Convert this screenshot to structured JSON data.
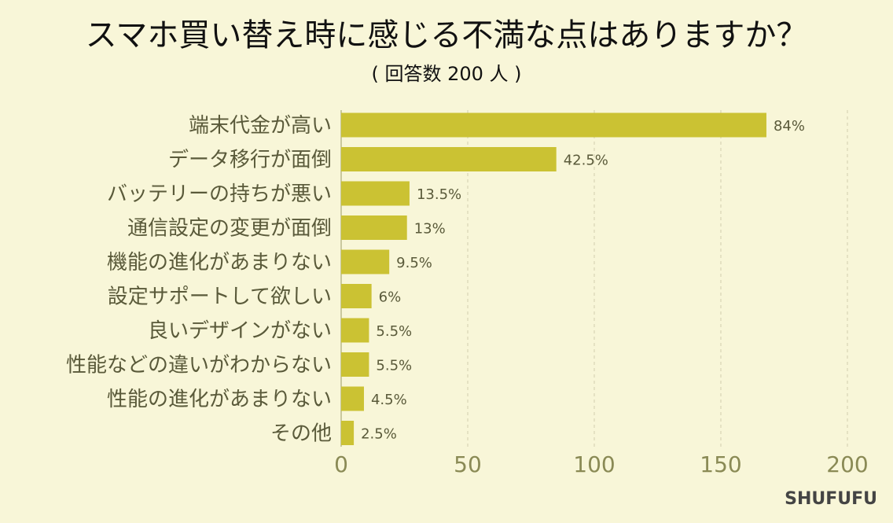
{
  "brand": "SHUFUFU",
  "colors": {
    "bar": "#cbc233",
    "grid": "#d2cfae",
    "axis": "#b9b88a",
    "background": "#f8f6d8"
  },
  "chart_data": {
    "type": "bar",
    "orientation": "horizontal",
    "title": "スマホ買い替え時に感じる不満な点はありますか？",
    "subtitle": "( 回答数 200 人 )",
    "categories": [
      "端末代金が高い",
      "データ移行が面倒",
      "バッテリーの持ちが悪い",
      "通信設定の変更が面倒",
      "機能の進化があまりない",
      "設定サポートして欲しい",
      "良いデザインがない",
      "性能などの違いがわからない",
      "性能の進化があまりない",
      "その他"
    ],
    "values": [
      168,
      85,
      27,
      26,
      19,
      12,
      11,
      11,
      9,
      5
    ],
    "data_labels": [
      "84%",
      "42.5%",
      "13.5%",
      "13%",
      "9.5%",
      "6%",
      "5.5%",
      "5.5%",
      "4.5%",
      "2.5%"
    ],
    "xlim": [
      0,
      200
    ],
    "xticks": [
      0,
      50,
      100,
      150,
      200
    ],
    "grid": true
  }
}
